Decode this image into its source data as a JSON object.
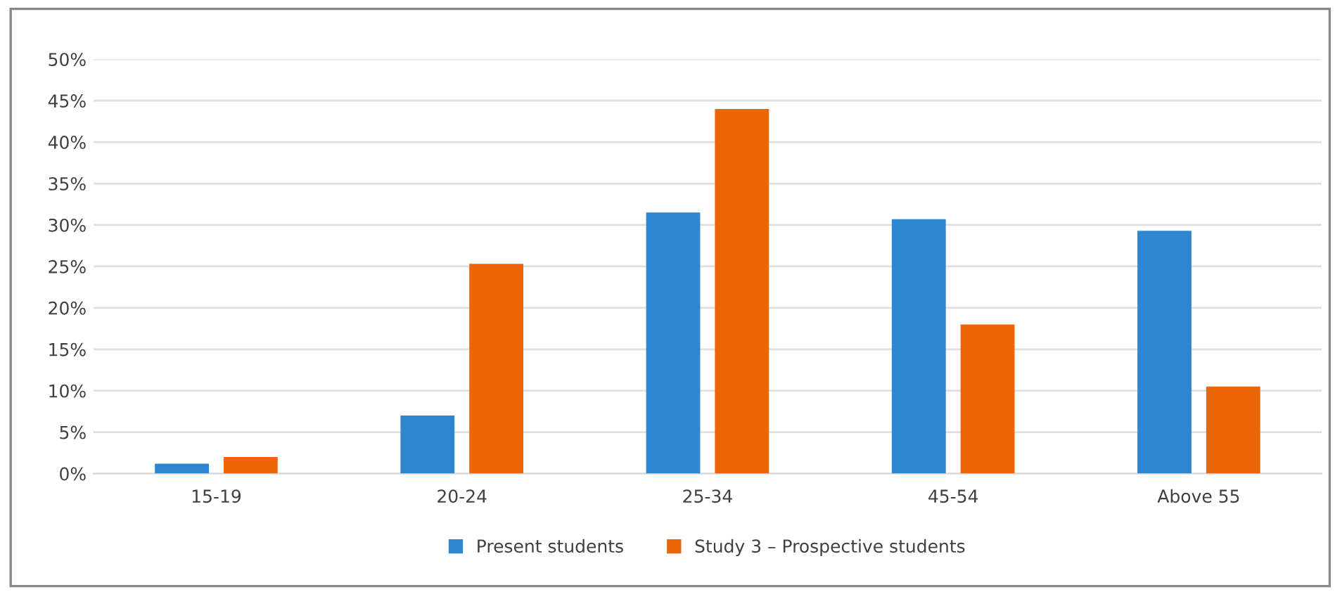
{
  "chart_data": {
    "type": "bar",
    "categories": [
      "15-19",
      "20-24",
      "25-34",
      "45-54",
      "Above 55"
    ],
    "series": [
      {
        "name": "Present students",
        "color": "#2e86d0",
        "values": [
          1.2,
          7,
          31.5,
          30.7,
          29.3
        ]
      },
      {
        "name": "Study 3 – Prospective students",
        "color": "#ec6608",
        "values": [
          2,
          25.3,
          44,
          18,
          10.5
        ]
      }
    ],
    "ylim": [
      0,
      50
    ],
    "yticks": [
      {
        "value": 0,
        "label": "0%"
      },
      {
        "value": 5,
        "label": "5%"
      },
      {
        "value": 10,
        "label": "10%"
      },
      {
        "value": 15,
        "label": "15%"
      },
      {
        "value": 20,
        "label": "20%"
      },
      {
        "value": 25,
        "label": "25%"
      },
      {
        "value": 30,
        "label": "30%"
      },
      {
        "value": 35,
        "label": "35%"
      },
      {
        "value": 40,
        "label": "40%"
      },
      {
        "value": 45,
        "label": "45%"
      },
      {
        "value": 50,
        "label": "50%"
      }
    ],
    "grid": "y",
    "legend": "bottom"
  }
}
